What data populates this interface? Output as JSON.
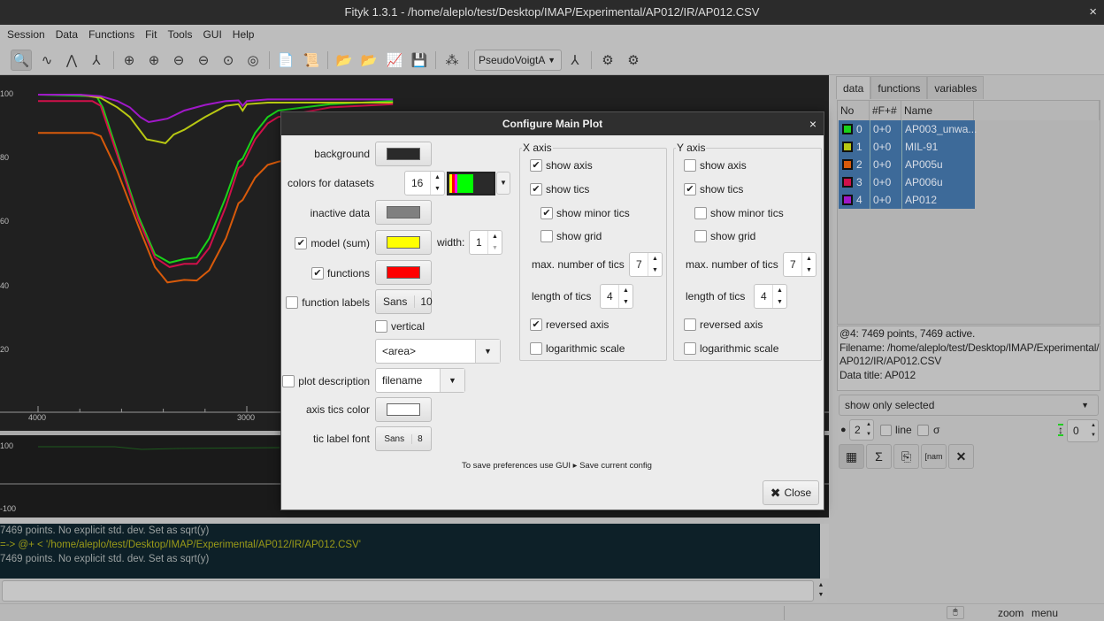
{
  "window": {
    "title": "Fityk 1.3.1 - /home/aleplo/test/Desktop/IMAP/Experimental/AP012/IR/AP012.CSV",
    "close": "×"
  },
  "menu": [
    "Session",
    "Data",
    "Functions",
    "Fit",
    "Tools",
    "GUI",
    "Help"
  ],
  "toolbar": {
    "function_type": "PseudoVoigtA",
    "icons": [
      "zoom-mode",
      "range-mode",
      "add-peak-mode",
      "peak-pick-mode",
      "zoom-all",
      "zoom-visible-vertical",
      "zoom-left",
      "zoom-right",
      "zoom-fit",
      "zoom-previous",
      "edit-script",
      "run-script",
      "load-data",
      "load-data-dialog",
      "export-plot",
      "save-data",
      "auto-peak",
      "peak-type",
      "run-fit",
      "run-fit-options"
    ]
  },
  "plot": {
    "y_ticks": [
      "100",
      "80",
      "60",
      "40",
      "20"
    ],
    "x_ticks": [
      "4000",
      "3000"
    ],
    "resid_ticks": [
      "100",
      "-100"
    ],
    "background": "#202020"
  },
  "chart_data": {
    "type": "line",
    "x_reversed": true,
    "xlim": [
      4000,
      2300
    ],
    "ylim": [
      0,
      105
    ],
    "series": [
      {
        "name": "AP003_unwa...",
        "color": "#19d219",
        "x": [
          4000,
          3720,
          3690,
          3620,
          3520,
          3440,
          3370,
          3300,
          3240,
          3180,
          3100,
          3040,
          3020,
          2960,
          2900,
          2850,
          2600,
          2300
        ],
        "y": [
          100,
          99.5,
          96,
          82,
          62,
          50,
          47.4,
          48.5,
          49,
          55,
          68,
          79,
          80,
          88,
          93,
          95,
          97,
          98
        ]
      },
      {
        "name": "MIL-91",
        "color": "#b8c812",
        "x": [
          4000,
          3800,
          3700,
          3620,
          3560,
          3480,
          3440,
          3390,
          3350,
          3300,
          3200,
          3100,
          3040,
          3020,
          3000,
          2900,
          2300
        ],
        "y": [
          100,
          100,
          99,
          96,
          93,
          86,
          85.5,
          84.8,
          87.5,
          89,
          93,
          96.5,
          97,
          95,
          97,
          97.5,
          97.5
        ]
      },
      {
        "name": "AP005u",
        "color": "#d85a0a",
        "x": [
          4000,
          3740,
          3700,
          3620,
          3520,
          3440,
          3380,
          3300,
          3240,
          3180,
          3100,
          3040,
          3020,
          2960,
          2900,
          2850,
          2600,
          2300
        ],
        "y": [
          88,
          88,
          87,
          76,
          59,
          46,
          41.2,
          42,
          41.8,
          45,
          55,
          66,
          67,
          74,
          78,
          79,
          82,
          84
        ]
      },
      {
        "name": "AP006u",
        "color": "#d0104a",
        "x": [
          4000,
          3740,
          3700,
          3620,
          3520,
          3440,
          3370,
          3300,
          3240,
          3180,
          3100,
          3040,
          3020,
          2960,
          2900,
          2850,
          2600,
          2300
        ],
        "y": [
          98,
          98,
          96.5,
          81,
          61,
          49,
          46,
          47,
          47,
          52,
          65,
          77,
          78,
          86,
          91,
          93,
          96,
          97
        ]
      },
      {
        "name": "AP012",
        "color": "#a018c8",
        "x": [
          4000,
          3800,
          3700,
          3620,
          3560,
          3510,
          3470,
          3420,
          3380,
          3300,
          3200,
          3100,
          3040,
          3020,
          3000,
          2900,
          2300
        ],
        "y": [
          100,
          100,
          99.5,
          98,
          96,
          93,
          91.4,
          92,
          92.5,
          95,
          96.8,
          98,
          98.2,
          96.5,
          98,
          98.5,
          98.5
        ]
      }
    ]
  },
  "console": {
    "lines": [
      {
        "text": "7469 points. No explicit std. dev. Set as sqrt(y)",
        "color": "#9aa0a0"
      },
      {
        "text": "=-> @+ < '/home/aleplo/test/Desktop/IMAP/Experimental/AP012/IR/AP012.CSV'",
        "color": "#9a9a18"
      },
      {
        "text": "7469 points. No explicit std. dev. Set as sqrt(y)",
        "color": "#9aa0a0"
      }
    ],
    "input_value": ""
  },
  "status": {
    "zoom": "zoom",
    "menu": "menu"
  },
  "sidebar": {
    "tabs": [
      "data",
      "functions",
      "variables"
    ],
    "columns": [
      "No",
      "#F+#",
      "Name"
    ],
    "datasets": [
      {
        "no": "0",
        "f": "0+0",
        "name": "AP003_unwa...",
        "color": "#19d219"
      },
      {
        "no": "1",
        "f": "0+0",
        "name": "MIL-91",
        "color": "#b8c812"
      },
      {
        "no": "2",
        "f": "0+0",
        "name": "AP005u",
        "color": "#d85a0a"
      },
      {
        "no": "3",
        "f": "0+0",
        "name": "AP006u",
        "color": "#d0104a"
      },
      {
        "no": "4",
        "f": "0+0",
        "name": "AP012",
        "color": "#a018c8"
      }
    ],
    "info": [
      "@4: 7469 points, 7469 active.",
      "Filename: /home/aleplo/test/Desktop/IMAP/Experimental/",
      "AP012/IR/AP012.CSV",
      "Data title: AP012"
    ],
    "show_filter": "show only selected",
    "point_size": "2",
    "line_label": "line",
    "sigma_label": "σ",
    "shift": "0"
  },
  "dialog": {
    "title": "Configure Main Plot",
    "close": "×",
    "background_label": "background",
    "background_color": "#2a2a2a",
    "colors_label": "colors for datasets",
    "colors_count": "16",
    "inactive_label": "inactive data",
    "inactive_color": "#808080",
    "model_label": "model (sum)",
    "model_checked": true,
    "model_color": "#ffff00",
    "width_label": "width:",
    "width_value": "1",
    "functions_label": "functions",
    "functions_checked": true,
    "functions_color": "#ff0000",
    "function_labels_label": "function labels",
    "function_labels_checked": false,
    "font_name": "Sans",
    "font_size": "10",
    "vertical_label": "vertical",
    "label_combo": "<area>",
    "plot_desc_label": "plot description",
    "plot_desc_combo": "filename",
    "axis_color_label": "axis  tics color",
    "axis_color": "#ffffff",
    "tic_font_label": "tic label font",
    "tic_font_name": "Sans",
    "tic_font_size": "8",
    "note": "To save preferences use GUI ▸ Save current config",
    "close_button": "Close",
    "x_axis": {
      "title": "X axis",
      "show_axis": true,
      "show_tics": true,
      "show_minor_tics": true,
      "show_grid": false,
      "max_tics": "7",
      "tic_length": "4",
      "reversed": true,
      "log": false
    },
    "y_axis": {
      "title": "Y axis",
      "show_axis": false,
      "show_tics": true,
      "show_minor_tics": false,
      "show_grid": false,
      "max_tics": "7",
      "tic_length": "4",
      "reversed": false,
      "log": false
    },
    "labels": {
      "show_axis": "show axis",
      "show_tics": "show tics",
      "show_minor_tics": "show minor tics",
      "show_grid": "show grid",
      "max_tics": "max. number of tics",
      "tic_length": "length of tics",
      "reversed": "reversed axis",
      "log": "logarithmic scale"
    }
  }
}
